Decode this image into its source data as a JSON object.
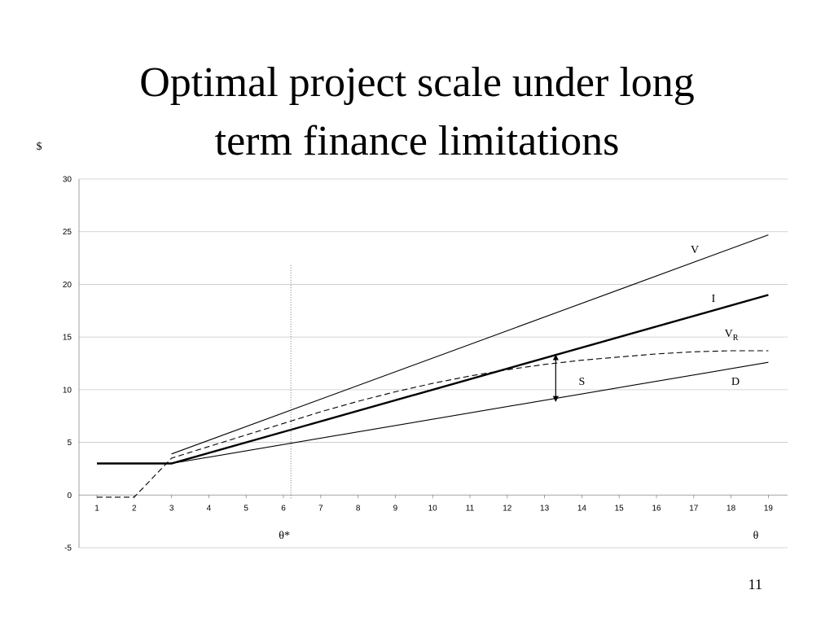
{
  "slide": {
    "title_line1": "Optimal project scale under long",
    "title_line2": "term finance limitations",
    "page_number": "11"
  },
  "chart_data": {
    "type": "line",
    "title": "Optimal project scale under long term finance limitations",
    "ylabel": "$",
    "xlabel": "θ",
    "xlim": [
      1,
      19
    ],
    "ylim": [
      -5,
      30
    ],
    "x_ticks": [
      1,
      2,
      3,
      4,
      5,
      6,
      7,
      8,
      9,
      10,
      11,
      12,
      13,
      14,
      15,
      16,
      17,
      18,
      19
    ],
    "y_ticks": [
      -5,
      0,
      5,
      10,
      15,
      20,
      25,
      30
    ],
    "grid": true,
    "series": [
      {
        "name": "V",
        "style": "solid",
        "x": [
          3,
          19
        ],
        "y": [
          3.9,
          24.7
        ]
      },
      {
        "name": "I",
        "style": "bold",
        "x": [
          1,
          3,
          19
        ],
        "y": [
          3,
          3,
          19
        ]
      },
      {
        "name": "V",
        "subscript": "R",
        "style": "dashed",
        "x": [
          1,
          2,
          3,
          4,
          5,
          6,
          7,
          8,
          9,
          10,
          11,
          12,
          13,
          14,
          15,
          16,
          17,
          18,
          19
        ],
        "y": [
          -0.2,
          -0.2,
          3.5,
          4.6,
          5.7,
          6.8,
          7.9,
          8.9,
          9.8,
          10.6,
          11.3,
          11.9,
          12.4,
          12.8,
          13.1,
          13.4,
          13.6,
          13.7,
          13.7
        ]
      },
      {
        "name": "D",
        "style": "solid",
        "x": [
          3,
          19
        ],
        "y": [
          3,
          12.6
        ]
      }
    ],
    "annotations": {
      "theta_star": {
        "label": "θ*",
        "x": 6.2,
        "y_top": 21.8
      },
      "s_gap": {
        "label": "S",
        "x": 13.3,
        "y_from": 13.3,
        "y_to": 8.9
      },
      "theta_label": "θ"
    }
  }
}
